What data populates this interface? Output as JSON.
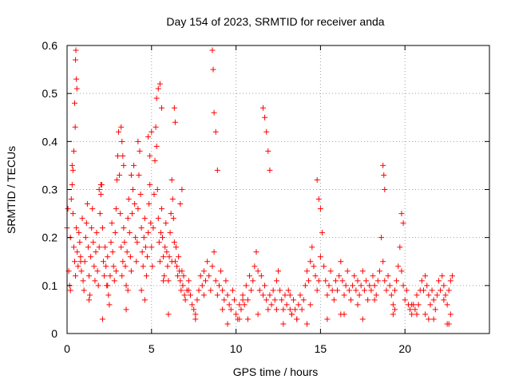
{
  "chart_data": {
    "type": "scatter",
    "title": "Day 154 of 2023, SRMTID for receiver anda",
    "xlabel": "GPS time / hours",
    "ylabel": "SRMTID / TECUs",
    "xlim": [
      0,
      25
    ],
    "ylim": [
      0,
      0.6
    ],
    "xticks": [
      0,
      5,
      10,
      15,
      20
    ],
    "yticks": [
      0,
      0.1,
      0.2,
      0.3,
      0.4,
      0.5,
      0.6
    ],
    "xtick_labels": [
      "0",
      "5",
      "10",
      "15",
      "20"
    ],
    "ytick_labels": [
      "0",
      "0.1",
      "0.2",
      "0.3",
      "0.4",
      "0.5",
      "0.6"
    ],
    "grid": true,
    "marker": "+",
    "color": "#ff0000",
    "series": [
      {
        "name": "SRMTID",
        "x": [
          0.0,
          0.05,
          0.1,
          0.15,
          0.2,
          0.25,
          0.3,
          0.35,
          0.4,
          0.45,
          0.5,
          0.55,
          0.6,
          0.65,
          0.7,
          0.75,
          0.8,
          0.85,
          0.9,
          0.95,
          1.0,
          1.05,
          1.1,
          1.15,
          1.2,
          1.25,
          1.3,
          1.35,
          1.4,
          1.45,
          1.5,
          1.55,
          1.6,
          1.65,
          1.7,
          1.75,
          1.8,
          1.85,
          1.9,
          1.95,
          2.0,
          2.05,
          2.1,
          2.15,
          2.2,
          2.25,
          2.3,
          2.35,
          2.4,
          2.45,
          2.5,
          2.55,
          2.6,
          2.65,
          2.7,
          2.75,
          2.8,
          2.85,
          2.9,
          2.95,
          3.0,
          3.05,
          3.1,
          3.15,
          3.2,
          3.25,
          3.3,
          3.35,
          3.4,
          3.45,
          3.5,
          3.55,
          3.6,
          3.65,
          3.7,
          3.75,
          3.8,
          3.85,
          3.9,
          3.95,
          4.0,
          4.05,
          4.1,
          4.15,
          4.2,
          4.25,
          4.3,
          4.35,
          4.4,
          4.45,
          4.5,
          4.55,
          4.6,
          4.65,
          4.7,
          4.75,
          4.8,
          4.85,
          4.9,
          4.95,
          5.0,
          5.05,
          5.1,
          5.15,
          5.2,
          5.25,
          5.3,
          5.35,
          5.4,
          5.45,
          5.5,
          5.55,
          5.6,
          5.65,
          5.7,
          5.75,
          5.8,
          5.85,
          5.9,
          5.95,
          6.0,
          6.05,
          6.1,
          6.15,
          6.2,
          6.25,
          6.3,
          6.35,
          6.4,
          6.45,
          6.5,
          6.55,
          6.6,
          6.65,
          6.7,
          6.75,
          6.8,
          6.85,
          6.9,
          6.95,
          7.0,
          7.1,
          7.2,
          7.3,
          7.4,
          7.5,
          7.6,
          7.7,
          7.8,
          7.9,
          8.0,
          8.1,
          8.2,
          8.3,
          8.4,
          8.5,
          8.6,
          8.7,
          8.8,
          8.9,
          9.0,
          9.1,
          9.2,
          9.3,
          9.4,
          9.5,
          9.6,
          9.7,
          9.8,
          9.9,
          10.0,
          10.1,
          10.2,
          10.3,
          10.4,
          10.5,
          10.6,
          10.7,
          10.8,
          10.9,
          11.0,
          11.1,
          11.2,
          11.3,
          11.4,
          11.5,
          11.6,
          11.7,
          11.8,
          11.9,
          12.0,
          12.1,
          12.2,
          12.3,
          12.4,
          12.5,
          12.6,
          12.7,
          12.8,
          12.9,
          13.0,
          13.1,
          13.2,
          13.3,
          13.4,
          13.5,
          13.6,
          13.7,
          13.8,
          13.9,
          14.0,
          14.1,
          14.2,
          14.3,
          14.4,
          14.5,
          14.6,
          14.7,
          14.8,
          14.9,
          15.0,
          15.1,
          15.2,
          15.3,
          15.4,
          15.5,
          15.6,
          15.7,
          15.8,
          15.9,
          16.0,
          16.1,
          16.2,
          16.3,
          16.4,
          16.5,
          16.6,
          16.7,
          16.8,
          16.9,
          17.0,
          17.1,
          17.2,
          17.3,
          17.4,
          17.5,
          17.6,
          17.7,
          17.8,
          17.9,
          18.0,
          18.1,
          18.2,
          18.3,
          18.4,
          18.5,
          18.6,
          18.7,
          18.8,
          18.9,
          19.0,
          19.1,
          19.2,
          19.3,
          19.4,
          19.5,
          19.6,
          19.7,
          19.8,
          19.9,
          20.0,
          20.1,
          20.2,
          20.3,
          20.4,
          20.5,
          20.6,
          20.7,
          20.8,
          20.9,
          21.0,
          21.1,
          21.2,
          21.3,
          21.4,
          21.5,
          21.6,
          21.7,
          21.8,
          21.9,
          22.0,
          22.1,
          22.2,
          22.3,
          22.4,
          22.5,
          22.6,
          22.7,
          22.8,
          0.45,
          0.5,
          0.52,
          0.55,
          0.58,
          0.48,
          0.4,
          3.2,
          3.25,
          3.3,
          3.35,
          4.8,
          5.3,
          5.4,
          5.5,
          5.6,
          6.35,
          6.4,
          8.6,
          8.65,
          8.7,
          8.8,
          8.9,
          11.6,
          11.7,
          11.8,
          11.9,
          12.0,
          14.8,
          14.9,
          15.0,
          18.7,
          18.75,
          18.8,
          19.8,
          19.9,
          0.3,
          0.35,
          1.9,
          2.0,
          3.8,
          4.2,
          4.9,
          5.0,
          6.7,
          6.8,
          2.1,
          3.5,
          4.4,
          6.0,
          7.6,
          9.5,
          10.7,
          12.8,
          13.6,
          14.2,
          16.2,
          17.5,
          19.3,
          21.4,
          22.5,
          22.7,
          10.2,
          13.3,
          20.7,
          21.7,
          22.6,
          0.2,
          0.8,
          1.3,
          2.4,
          2.9,
          3.6,
          4.6,
          5.7,
          6.2,
          7.2,
          8.1,
          9.2,
          10.4,
          11.3,
          12.4,
          13.2,
          14.4,
          15.4,
          16.4,
          17.2,
          18.2,
          19.4,
          20.4,
          21.2,
          22.3
        ],
        "y": [
          0.22,
          0.26,
          0.13,
          0.1,
          0.2,
          0.28,
          0.35,
          0.25,
          0.18,
          0.15,
          0.12,
          0.22,
          0.17,
          0.14,
          0.21,
          0.19,
          0.16,
          0.13,
          0.24,
          0.11,
          0.09,
          0.15,
          0.2,
          0.23,
          0.27,
          0.18,
          0.12,
          0.08,
          0.16,
          0.22,
          0.26,
          0.19,
          0.14,
          0.11,
          0.17,
          0.21,
          0.13,
          0.1,
          0.18,
          0.25,
          0.29,
          0.31,
          0.22,
          0.15,
          0.12,
          0.18,
          0.14,
          0.1,
          0.16,
          0.08,
          0.06,
          0.12,
          0.19,
          0.23,
          0.17,
          0.14,
          0.11,
          0.21,
          0.26,
          0.32,
          0.37,
          0.42,
          0.33,
          0.25,
          0.18,
          0.12,
          0.15,
          0.22,
          0.19,
          0.14,
          0.1,
          0.17,
          0.24,
          0.28,
          0.21,
          0.16,
          0.13,
          0.25,
          0.3,
          0.35,
          0.27,
          0.2,
          0.15,
          0.19,
          0.26,
          0.33,
          0.38,
          0.29,
          0.22,
          0.17,
          0.14,
          0.2,
          0.24,
          0.18,
          0.12,
          0.16,
          0.21,
          0.27,
          0.31,
          0.23,
          0.18,
          0.14,
          0.22,
          0.29,
          0.36,
          0.43,
          0.39,
          0.3,
          0.24,
          0.19,
          0.15,
          0.21,
          0.26,
          0.2,
          0.16,
          0.12,
          0.18,
          0.23,
          0.17,
          0.14,
          0.11,
          0.16,
          0.21,
          0.25,
          0.32,
          0.28,
          0.24,
          0.19,
          0.15,
          0.18,
          0.14,
          0.12,
          0.16,
          0.13,
          0.11,
          0.09,
          0.13,
          0.1,
          0.12,
          0.08,
          0.07,
          0.09,
          0.11,
          0.08,
          0.06,
          0.05,
          0.04,
          0.07,
          0.09,
          0.12,
          0.1,
          0.13,
          0.11,
          0.15,
          0.12,
          0.09,
          0.14,
          0.17,
          0.11,
          0.08,
          0.1,
          0.13,
          0.09,
          0.07,
          0.11,
          0.08,
          0.06,
          0.05,
          0.09,
          0.07,
          0.04,
          0.03,
          0.06,
          0.05,
          0.08,
          0.06,
          0.1,
          0.07,
          0.12,
          0.09,
          0.11,
          0.14,
          0.17,
          0.13,
          0.09,
          0.12,
          0.08,
          0.1,
          0.07,
          0.05,
          0.08,
          0.06,
          0.09,
          0.07,
          0.11,
          0.13,
          0.09,
          0.07,
          0.05,
          0.08,
          0.06,
          0.09,
          0.05,
          0.04,
          0.07,
          0.05,
          0.03,
          0.06,
          0.08,
          0.05,
          0.07,
          0.1,
          0.13,
          0.11,
          0.15,
          0.18,
          0.14,
          0.12,
          0.09,
          0.11,
          0.16,
          0.21,
          0.14,
          0.11,
          0.08,
          0.1,
          0.13,
          0.09,
          0.07,
          0.11,
          0.09,
          0.12,
          0.15,
          0.11,
          0.08,
          0.1,
          0.13,
          0.09,
          0.07,
          0.1,
          0.12,
          0.09,
          0.11,
          0.08,
          0.1,
          0.13,
          0.09,
          0.11,
          0.07,
          0.1,
          0.09,
          0.12,
          0.1,
          0.08,
          0.11,
          0.13,
          0.2,
          0.15,
          0.11,
          0.09,
          0.12,
          0.1,
          0.08,
          0.06,
          0.09,
          0.11,
          0.14,
          0.18,
          0.13,
          0.1,
          0.07,
          0.09,
          0.06,
          0.05,
          0.04,
          0.06,
          0.05,
          0.08,
          0.06,
          0.09,
          0.11,
          0.09,
          0.12,
          0.1,
          0.08,
          0.06,
          0.09,
          0.07,
          0.05,
          0.08,
          0.11,
          0.09,
          0.12,
          0.1,
          0.08,
          0.06,
          0.09,
          0.11,
          0.12,
          0.48,
          0.57,
          0.59,
          0.53,
          0.51,
          0.43,
          0.38,
          0.43,
          0.4,
          0.37,
          0.35,
          0.41,
          0.49,
          0.51,
          0.52,
          0.47,
          0.47,
          0.44,
          0.59,
          0.55,
          0.46,
          0.42,
          0.34,
          0.47,
          0.45,
          0.42,
          0.38,
          0.34,
          0.32,
          0.28,
          0.26,
          0.35,
          0.33,
          0.3,
          0.25,
          0.23,
          0.31,
          0.34,
          0.3,
          0.31,
          0.33,
          0.4,
          0.37,
          0.42,
          0.27,
          0.3,
          0.03,
          0.05,
          0.09,
          0.04,
          0.03,
          0.02,
          0.03,
          0.02,
          0.03,
          0.02,
          0.04,
          0.03,
          0.04,
          0.03,
          0.02,
          0.04,
          0.03,
          0.04,
          0.04,
          0.03,
          0.02,
          0.09,
          0.15,
          0.07,
          0.1,
          0.13,
          0.09,
          0.07,
          0.11,
          0.15,
          0.09,
          0.08,
          0.05,
          0.07,
          0.04,
          0.05,
          0.08,
          0.06,
          0.03,
          0.04,
          0.06,
          0.07,
          0.05,
          0.06,
          0.04,
          0.07
        ]
      }
    ]
  }
}
